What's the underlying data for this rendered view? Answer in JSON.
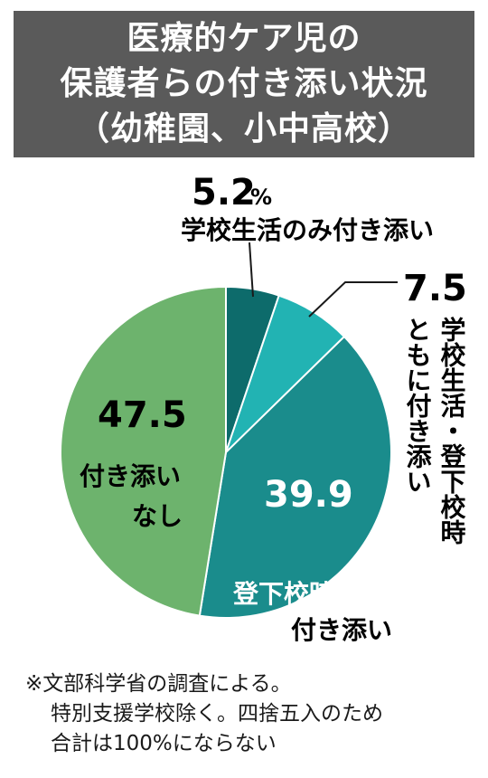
{
  "title": {
    "lines": [
      "医療的ケア児の",
      "保護者らの付き添い状況",
      "（幼稚園、小中高校）"
    ]
  },
  "chart_data": {
    "type": "pie",
    "unit": "%",
    "slices": [
      {
        "label": "学校生活のみ付き添い",
        "value": 5.2,
        "value_text": "5.2",
        "color": "#0d6b6b"
      },
      {
        "label": "学校生活・登下校時ともに付き添い",
        "label_col1": "学校生活・登下校時",
        "label_col2": "ともに付き添い",
        "value": 7.5,
        "value_text": "7.5",
        "color": "#22b3b3"
      },
      {
        "label": "登下校時のみ付き添い",
        "label_line1": "登下校時のみ",
        "label_line2": "付き添い",
        "value": 39.9,
        "value_text": "39.9",
        "color": "#1a8c8c"
      },
      {
        "label": "付き添いなし",
        "label_line1": "付き添い",
        "label_line2": "なし",
        "value": 47.5,
        "value_text": "47.5",
        "color": "#6db36d"
      }
    ]
  },
  "notes": [
    "※文部科学省の調査による。",
    "特別支援学校除く。四捨五入のため",
    "合計は100%にならない"
  ]
}
